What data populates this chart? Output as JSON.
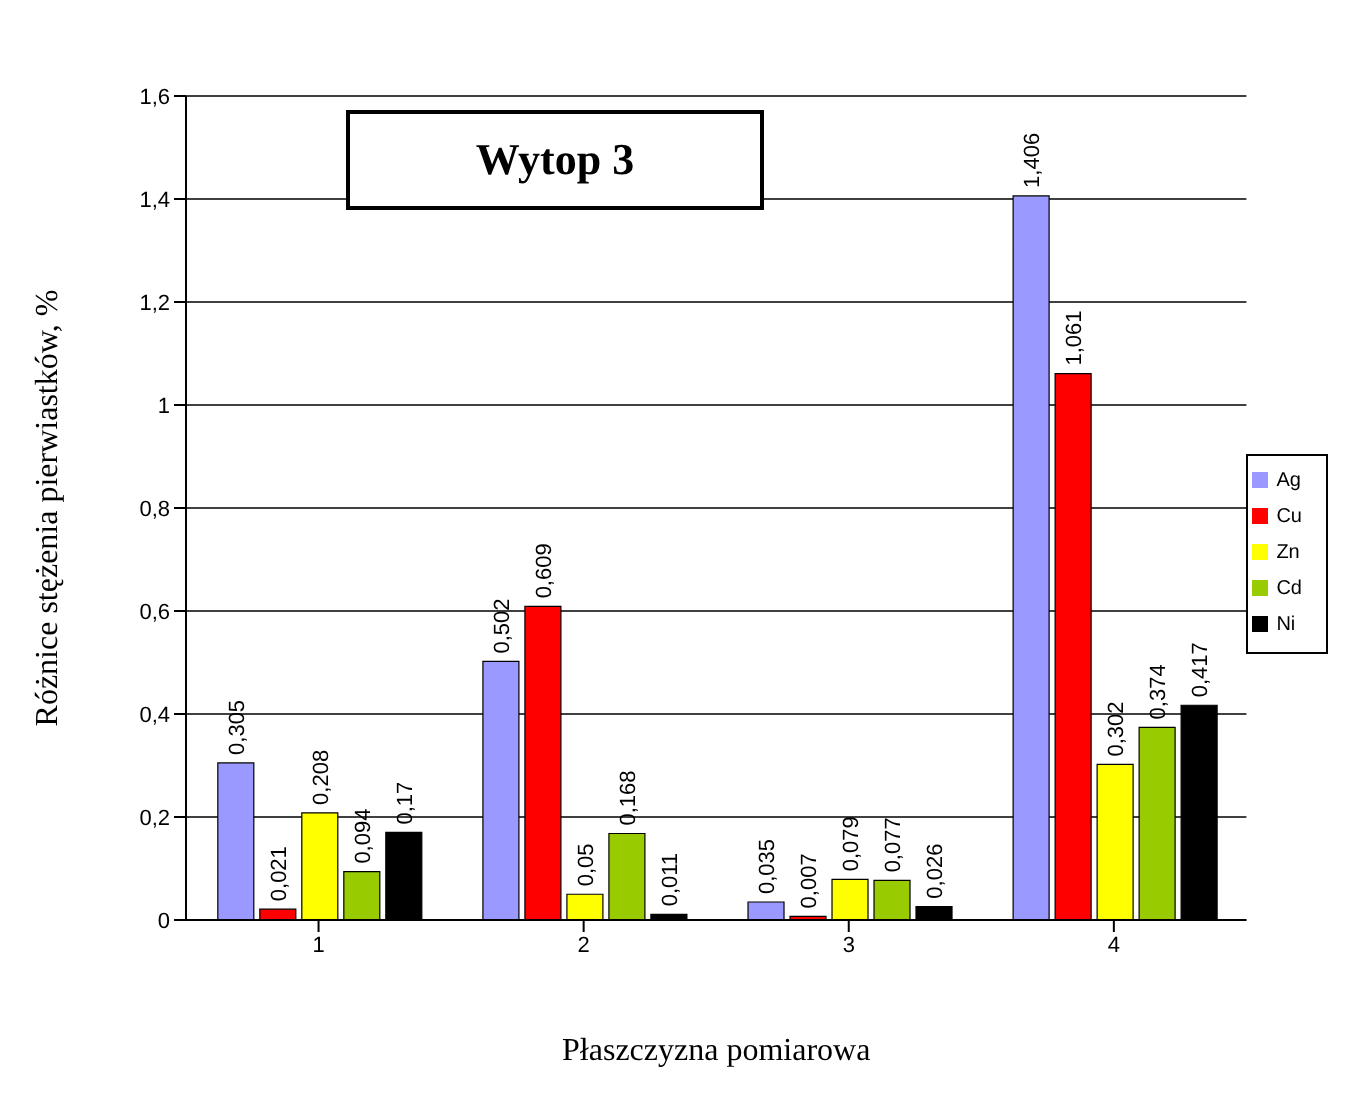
{
  "chart_data": {
    "type": "bar",
    "title": "Wytop 3",
    "xlabel": "Płaszczyzna pomiarowa",
    "ylabel": "Różnice stężenia pierwiastków, %",
    "categories": [
      "1",
      "2",
      "3",
      "4"
    ],
    "series": [
      {
        "name": "Ag",
        "color": "#9999ff",
        "values": [
          0.305,
          0.502,
          0.035,
          1.406
        ],
        "value_labels": [
          "0,305",
          "0,502",
          "0,035",
          "1,406"
        ]
      },
      {
        "name": "Cu",
        "color": "#ff0000",
        "values": [
          0.021,
          0.609,
          0.007,
          1.061
        ],
        "value_labels": [
          "0,021",
          "0,609",
          "0,007",
          "1,061"
        ]
      },
      {
        "name": "Zn",
        "color": "#ffff00",
        "values": [
          0.208,
          0.05,
          0.079,
          0.302
        ],
        "value_labels": [
          "0,208",
          "0,05",
          "0,079",
          "0,302"
        ]
      },
      {
        "name": "Cd",
        "color": "#99cc00",
        "values": [
          0.094,
          0.168,
          0.077,
          0.374
        ],
        "value_labels": [
          "0,094",
          "0,168",
          "0,077",
          "0,374"
        ]
      },
      {
        "name": "Ni",
        "color": "#000000",
        "values": [
          0.17,
          0.011,
          0.026,
          0.417
        ],
        "value_labels": [
          "0,17",
          "0,011",
          "0,026",
          "0,417"
        ]
      }
    ],
    "ylim": [
      0,
      1.6
    ],
    "yticks": [
      0,
      {
        "value": 0.2,
        "label": "0,2"
      },
      {
        "value": 0.4,
        "label": "0,4"
      },
      {
        "value": 0.6,
        "label": "0,6"
      },
      {
        "value": 0.8,
        "label": "0,8"
      },
      1,
      {
        "value": 1.2,
        "label": "1,2"
      },
      {
        "value": 1.4,
        "label": "1,4"
      },
      {
        "value": 1.6,
        "label": "1,6"
      }
    ],
    "grid": "y",
    "legend": "right"
  }
}
